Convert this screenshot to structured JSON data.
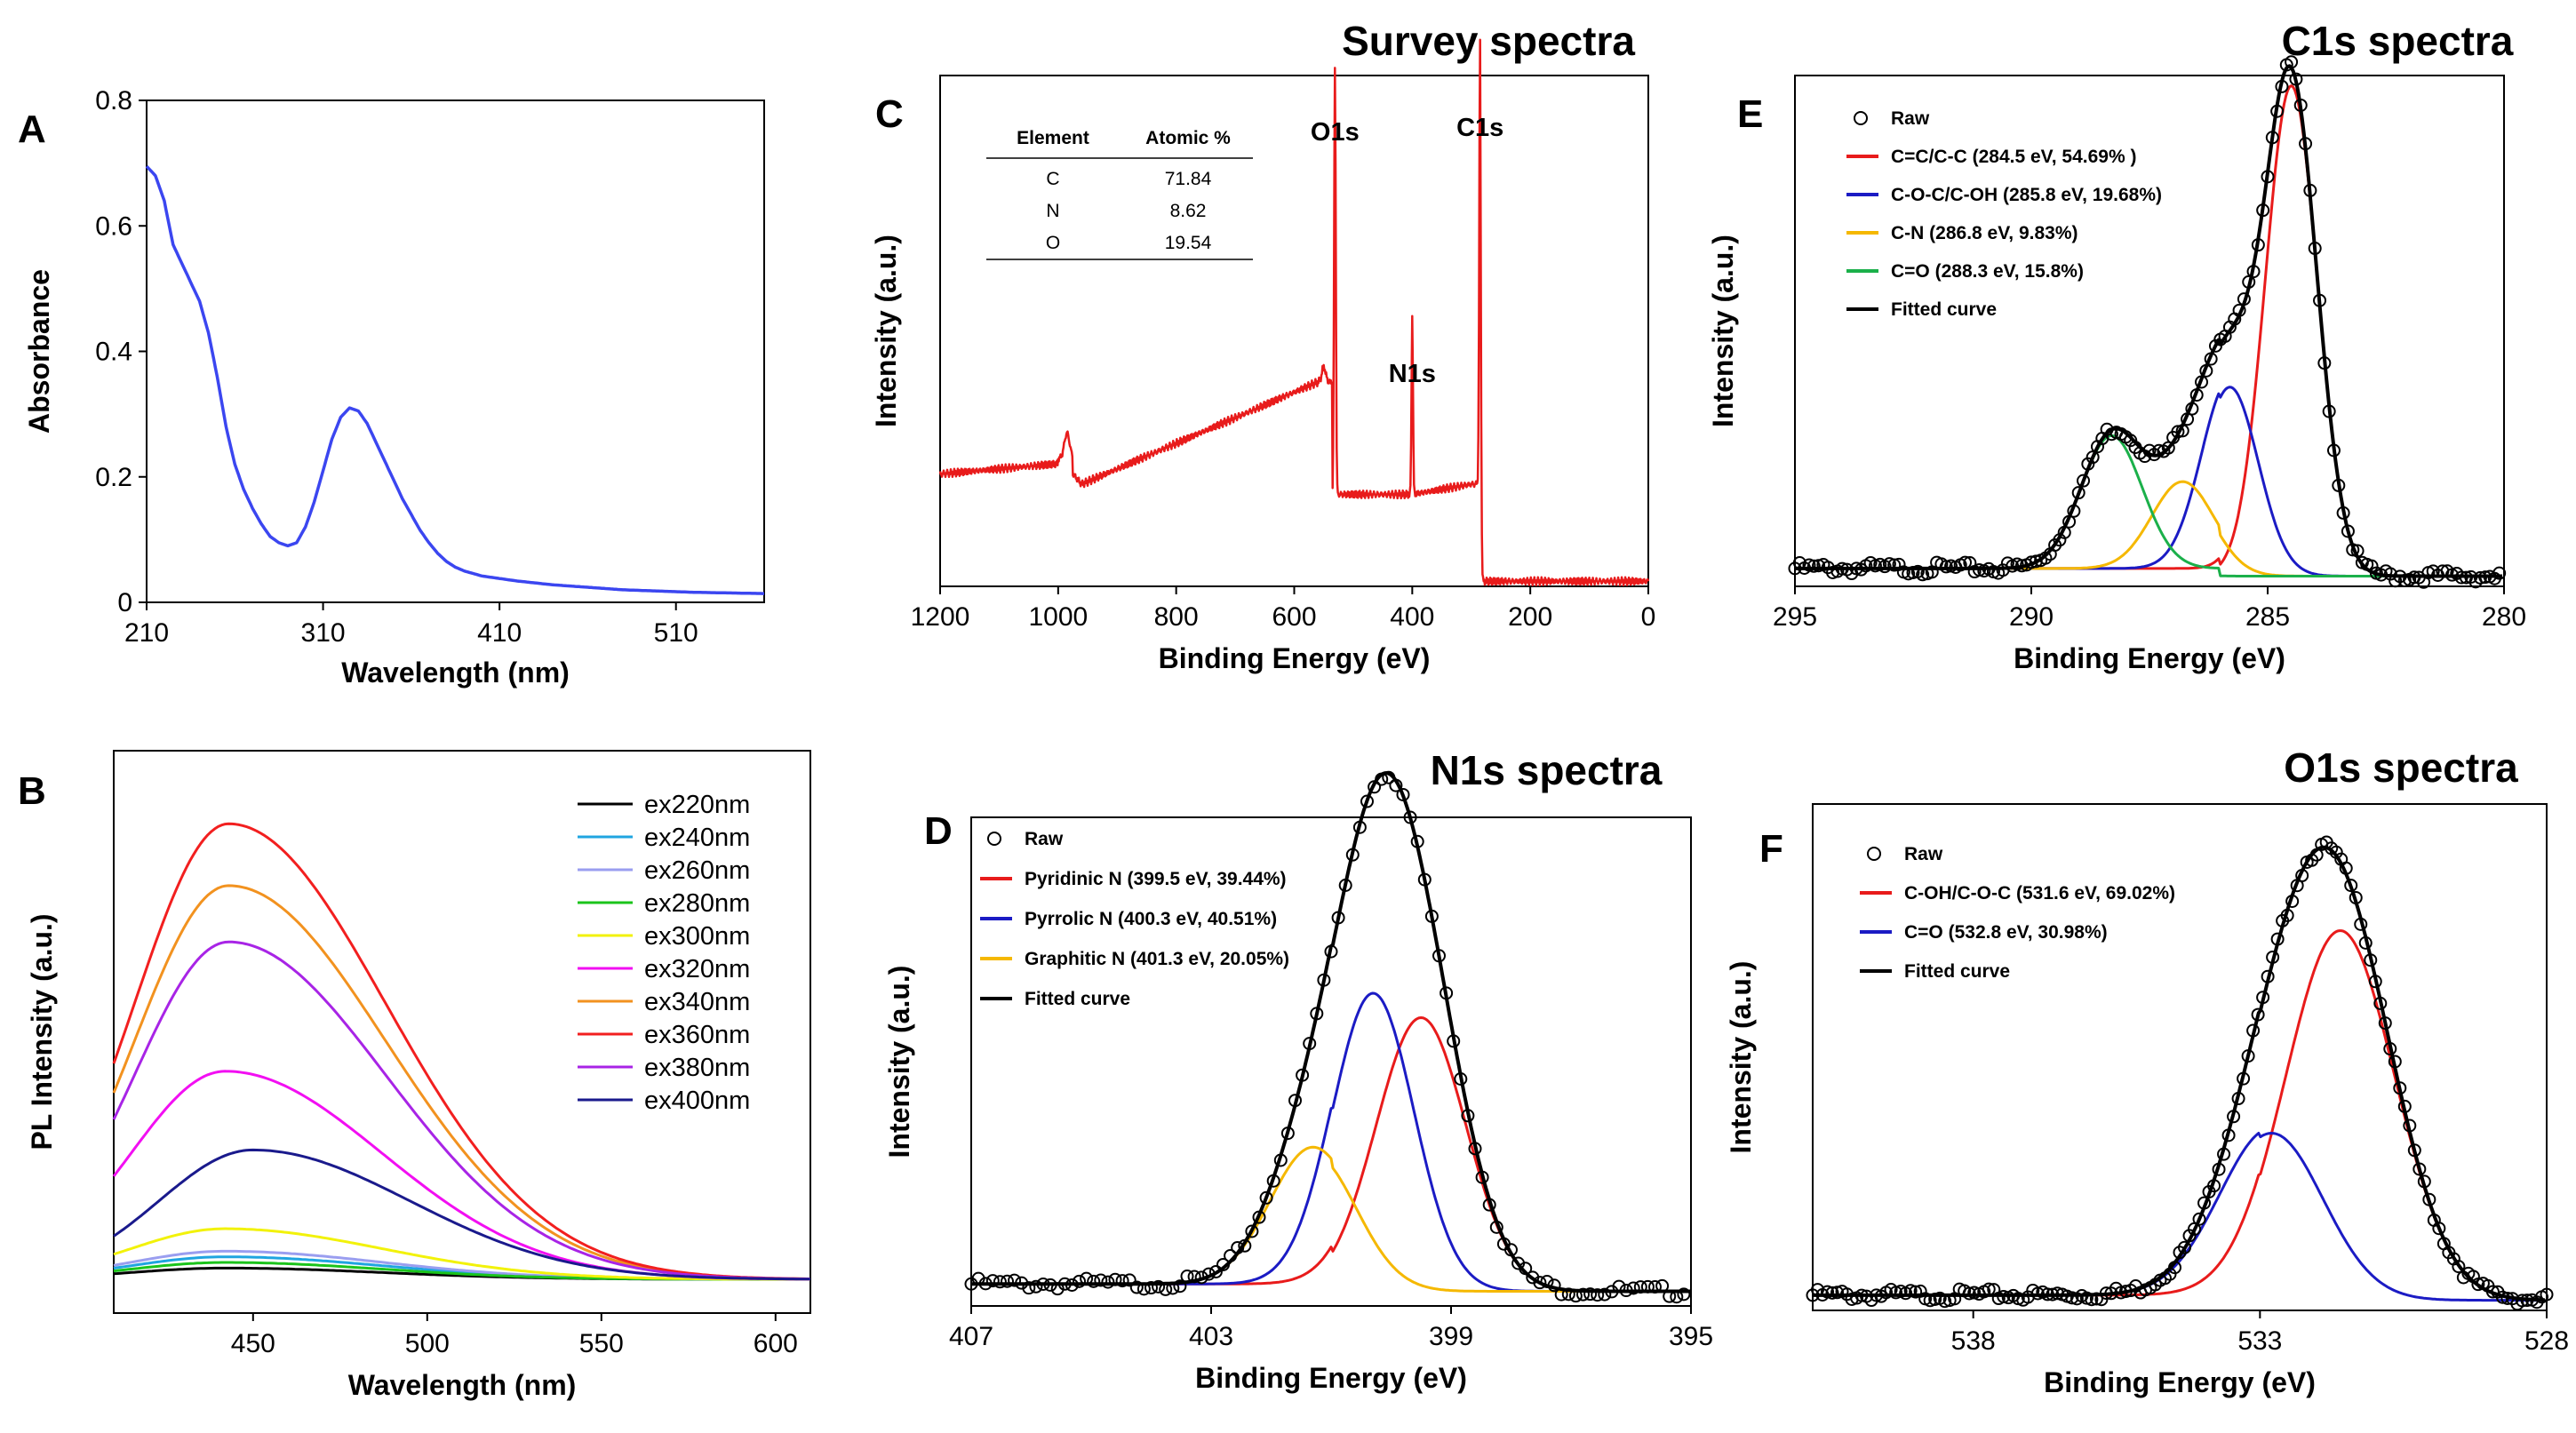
{
  "chart_data": [
    {
      "panel": "A",
      "type": "line",
      "title": "",
      "xlabel": "Wavelength (nm)",
      "ylabel": "Absorbance",
      "xlim": [
        210,
        560
      ],
      "ylim": [
        0,
        0.8
      ],
      "xticks": [
        210,
        310,
        410,
        510
      ],
      "yticks": [
        0,
        0.2,
        0.4,
        0.6,
        0.8
      ],
      "series": [
        {
          "name": "absorbance",
          "color": "#3b46f0",
          "x": [
            210,
            215,
            220,
            225,
            230,
            235,
            240,
            245,
            250,
            255,
            260,
            265,
            270,
            275,
            280,
            285,
            290,
            295,
            300,
            305,
            310,
            315,
            320,
            325,
            330,
            335,
            340,
            345,
            350,
            355,
            360,
            365,
            370,
            375,
            380,
            385,
            390,
            395,
            400,
            410,
            420,
            430,
            440,
            460,
            480,
            500,
            520,
            540,
            560
          ],
          "y": [
            0.695,
            0.68,
            0.64,
            0.57,
            0.54,
            0.51,
            0.48,
            0.43,
            0.36,
            0.28,
            0.22,
            0.18,
            0.15,
            0.125,
            0.105,
            0.095,
            0.09,
            0.095,
            0.12,
            0.16,
            0.21,
            0.26,
            0.295,
            0.31,
            0.305,
            0.285,
            0.255,
            0.225,
            0.195,
            0.165,
            0.14,
            0.115,
            0.095,
            0.078,
            0.065,
            0.056,
            0.05,
            0.046,
            0.042,
            0.038,
            0.034,
            0.031,
            0.028,
            0.024,
            0.02,
            0.018,
            0.016,
            0.015,
            0.014
          ]
        }
      ]
    },
    {
      "panel": "B",
      "type": "line",
      "title": "",
      "xlabel": "Wavelength (nm)",
      "ylabel": "PL Intensity (a.u.)",
      "xlim": [
        410,
        610
      ],
      "ylim": [
        0,
        1.0
      ],
      "xticks": [
        450,
        500,
        550,
        600
      ],
      "legend_position": "top-right",
      "series": [
        {
          "name": "ex220nm",
          "color": "#000000",
          "peak": 442,
          "amp": 0.02,
          "base": 0.06
        },
        {
          "name": "ex240nm",
          "color": "#1fa5e0",
          "peak": 442,
          "amp": 0.04,
          "base": 0.06
        },
        {
          "name": "ex260nm",
          "color": "#9a9ef0",
          "peak": 442,
          "amp": 0.05,
          "base": 0.06
        },
        {
          "name": "ex280nm",
          "color": "#1bc41b",
          "peak": 442,
          "amp": 0.03,
          "base": 0.06
        },
        {
          "name": "ex300nm",
          "color": "#f2f20a",
          "peak": 442,
          "amp": 0.09,
          "base": 0.06
        },
        {
          "name": "ex320nm",
          "color": "#f20ff2",
          "peak": 442,
          "amp": 0.37,
          "base": 0.06
        },
        {
          "name": "ex340nm",
          "color": "#f2921f",
          "peak": 443,
          "amp": 0.7,
          "base": 0.06
        },
        {
          "name": "ex360nm",
          "color": "#f21f1f",
          "peak": 443,
          "amp": 0.81,
          "base": 0.06
        },
        {
          "name": "ex380nm",
          "color": "#a824e6",
          "peak": 443,
          "amp": 0.6,
          "base": 0.06
        },
        {
          "name": "ex400nm",
          "color": "#1a1a8c",
          "peak": 450,
          "amp": 0.23,
          "base": 0.06
        }
      ]
    },
    {
      "panel": "C",
      "type": "line",
      "title": "Survey spectra",
      "xlabel": "Binding Energy (eV)",
      "ylabel": "Intensity (a.u.)",
      "xlim": [
        1200,
        0
      ],
      "ylim": [
        0,
        1.0
      ],
      "xticks": [
        1200,
        1000,
        800,
        600,
        400,
        200,
        0
      ],
      "annotations": [
        "O1s",
        "N1s",
        "C1s"
      ],
      "table": {
        "headers": [
          "Element",
          "Atomic %"
        ],
        "rows": [
          [
            "C",
            "71.84"
          ],
          [
            "N",
            "8.62"
          ],
          [
            "O",
            "19.54"
          ]
        ]
      },
      "series": [
        {
          "name": "survey",
          "color": "#e81b1b"
        }
      ]
    },
    {
      "panel": "D",
      "type": "line",
      "title": "N1s spectra",
      "xlabel": "Binding Energy (eV)",
      "ylabel": "Intensity (a.u.)",
      "xlim": [
        407,
        395
      ],
      "ylim": [
        0,
        1.0
      ],
      "xticks": [
        407,
        403,
        399,
        395
      ],
      "legend_position": "top-left",
      "series": [
        {
          "name": "Raw",
          "color": "#000000",
          "marker": "o"
        },
        {
          "name": "Pyridinic N (399.5 eV, 39.44%)",
          "color": "#e81b1b",
          "center": 399.5,
          "amp": 0.56,
          "width": 0.75
        },
        {
          "name": "Pyrrolic N (400.3 eV, 40.51%)",
          "color": "#1b1bc4",
          "center": 400.3,
          "amp": 0.61,
          "width": 0.68
        },
        {
          "name": "Graphitic N (401.3 eV, 20.05%)",
          "color": "#f5b800",
          "center": 401.3,
          "amp": 0.28,
          "width": 0.72
        },
        {
          "name": "Fitted curve",
          "color": "#000000"
        }
      ]
    },
    {
      "panel": "E",
      "type": "line",
      "title": "C1s spectra",
      "xlabel": "Binding Energy (eV)",
      "ylabel": "Intensity (a.u.)",
      "xlim": [
        295,
        280
      ],
      "ylim": [
        0,
        1.0
      ],
      "xticks": [
        295,
        290,
        285,
        280
      ],
      "legend_position": "top-left",
      "series": [
        {
          "name": "Raw",
          "color": "#000000",
          "marker": "o"
        },
        {
          "name": "C=C/C-C (284.5 eV, 54.69% )",
          "color": "#e81b1b",
          "center": 284.5,
          "amp": 0.96,
          "width": 0.55
        },
        {
          "name": "C-O-C/C-OH (285.8 eV, 19.68%)",
          "color": "#1b1bc4",
          "center": 285.8,
          "amp": 0.37,
          "width": 0.6
        },
        {
          "name": "C-N (286.8 eV, 9.83%)",
          "color": "#f5b800",
          "center": 286.8,
          "amp": 0.17,
          "width": 0.65
        },
        {
          "name": "C=O (288.3 eV, 15.8%)",
          "color": "#1bb04a",
          "center": 288.3,
          "amp": 0.26,
          "width": 0.65
        },
        {
          "name": "Fitted curve",
          "color": "#000000"
        }
      ]
    },
    {
      "panel": "F",
      "type": "line",
      "title": "O1s spectra",
      "xlabel": "Binding Energy (eV)",
      "ylabel": "Intensity (a.u.)",
      "xlim": [
        540.8,
        528
      ],
      "ylim": [
        0,
        1.0
      ],
      "xticks": [
        538,
        533,
        528
      ],
      "legend_position": "top-left",
      "series": [
        {
          "name": "Raw",
          "color": "#000000",
          "marker": "o"
        },
        {
          "name": "C-OH/C-O-C (531.6 eV, 69.02%)",
          "color": "#e81b1b",
          "center": 531.6,
          "amp": 0.73,
          "width": 0.95
        },
        {
          "name": "C=O (532.8 eV, 30.98%)",
          "color": "#1b1bc4",
          "center": 532.8,
          "amp": 0.33,
          "width": 0.9
        },
        {
          "name": "Fitted curve",
          "color": "#000000"
        }
      ]
    }
  ]
}
